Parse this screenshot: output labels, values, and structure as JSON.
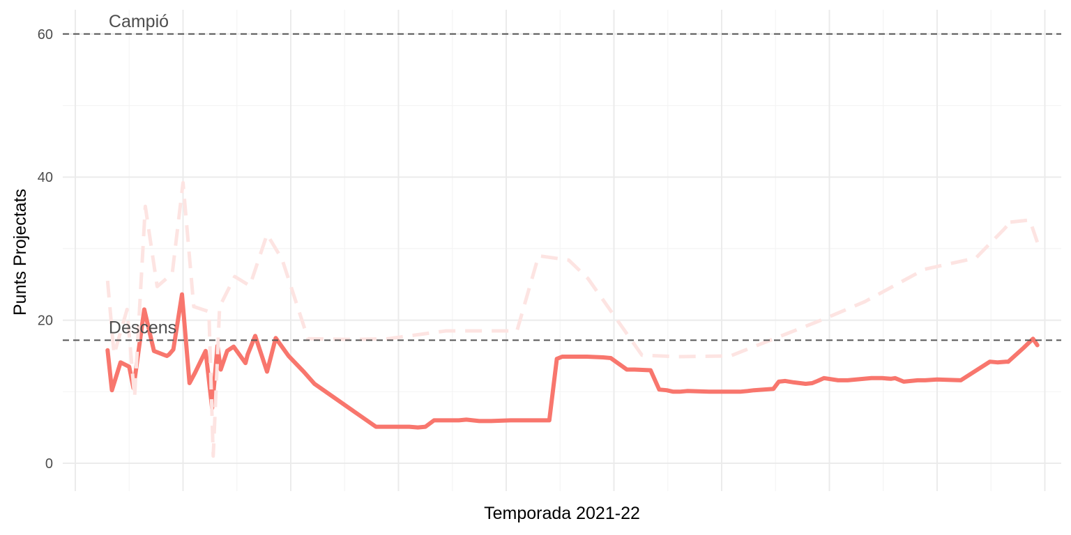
{
  "chart_data": {
    "type": "line",
    "title": "",
    "xlabel": "Temporada 2021-22",
    "ylabel": "Punts Projectats",
    "x_range": [
      -12,
      880
    ],
    "ylim": [
      -8,
      63
    ],
    "y_ticks": [
      0,
      20,
      40,
      60
    ],
    "x_gridlines": [
      0,
      100,
      200,
      300,
      400,
      500,
      600,
      700,
      800,
      900
    ],
    "grid": true,
    "legend": "none",
    "reference_lines": [
      {
        "label": "Campió",
        "value": 60,
        "label_x": 31
      },
      {
        "label": "Descens",
        "value": 17.2,
        "label_x": 31
      }
    ],
    "colors": {
      "main": "#f8766d",
      "ghost": "#fde4e2",
      "reference": "#555555",
      "grid_major": "#ebebeb",
      "grid_minor": "#f4f4f4"
    },
    "series": [
      {
        "style": "solid",
        "x": [
          30,
          34,
          42,
          50,
          54,
          64,
          73,
          85,
          87,
          91,
          99,
          106,
          111,
          121,
          127,
          132,
          135,
          141,
          147,
          158,
          160,
          167,
          178,
          186,
          198,
          212,
          222,
          279,
          294,
          304,
          310,
          318,
          325,
          333,
          341,
          356,
          363,
          375,
          386,
          404,
          411,
          440,
          447,
          452,
          458,
          475,
          490,
          497,
          512,
          519,
          534,
          542,
          549,
          555,
          561,
          568,
          590,
          617,
          624,
          630,
          648,
          653,
          659,
          667,
          678,
          684,
          689,
          695,
          708,
          717,
          739,
          744,
          749,
          757,
          761,
          769,
          782,
          789,
          800,
          822,
          849,
          856,
          864,
          866
        ],
        "y": [
          15.8,
          10.2,
          14.1,
          13.5,
          10.5,
          21.5,
          15.7,
          15.0,
          15.2,
          15.9,
          23.6,
          11.2,
          12.6,
          15.7,
          7.7,
          16.4,
          13.1,
          15.7,
          16.3,
          14.0,
          15.2,
          17.8,
          12.8,
          17.5,
          15.0,
          12.8,
          11.1,
          5.1,
          5.1,
          5.1,
          5.1,
          5.0,
          5.1,
          6.0,
          6.0,
          6.0,
          6.1,
          5.9,
          5.9,
          6.0,
          6.0,
          6.0,
          14.6,
          14.9,
          14.9,
          14.9,
          14.8,
          14.7,
          13.1,
          13.1,
          13.0,
          10.3,
          10.2,
          10.0,
          10.0,
          10.1,
          10.0,
          10.0,
          10.1,
          10.2,
          10.4,
          11.4,
          11.5,
          11.3,
          11.1,
          11.2,
          11.5,
          11.9,
          11.6,
          11.6,
          11.9,
          11.9,
          11.9,
          11.8,
          11.9,
          11.4,
          11.6,
          11.6,
          11.7,
          11.6,
          14.2,
          14.1,
          14.2,
          14.2
        ]
      },
      {
        "style": "dashed",
        "x": [
          30,
          36,
          48,
          55,
          65,
          76,
          90,
          100,
          110,
          124,
          128,
          134,
          148,
          162,
          178,
          192,
          216,
          258,
          290,
          344,
          410,
          430,
          458,
          476,
          526,
          560,
          608,
          694,
          733,
          788,
          836,
          862,
          868
        ],
        "y": [
          25.5,
          15.2,
          21.5,
          9.2,
          35.9,
          24.7,
          26.5,
          39.2,
          21.9,
          21.2,
          1.0,
          21.9,
          26.1,
          24.8,
          32.0,
          28.5,
          17.4,
          17.3,
          17.4,
          18.5,
          18.5,
          29.0,
          28.4,
          25.8,
          15.1,
          14.9,
          15.0,
          20.1,
          22.6,
          27.1,
          28.7,
          32.7,
          33.7
        ]
      },
      {
        "style": "solid",
        "x": [
          866,
          880,
          889,
          893
        ],
        "y": [
          14.2,
          16.1,
          17.4,
          16.5
        ]
      },
      {
        "style": "dashed",
        "x": [
          868,
          886,
          893
        ],
        "y": [
          33.7,
          34.0,
          30.9
        ]
      }
    ]
  }
}
